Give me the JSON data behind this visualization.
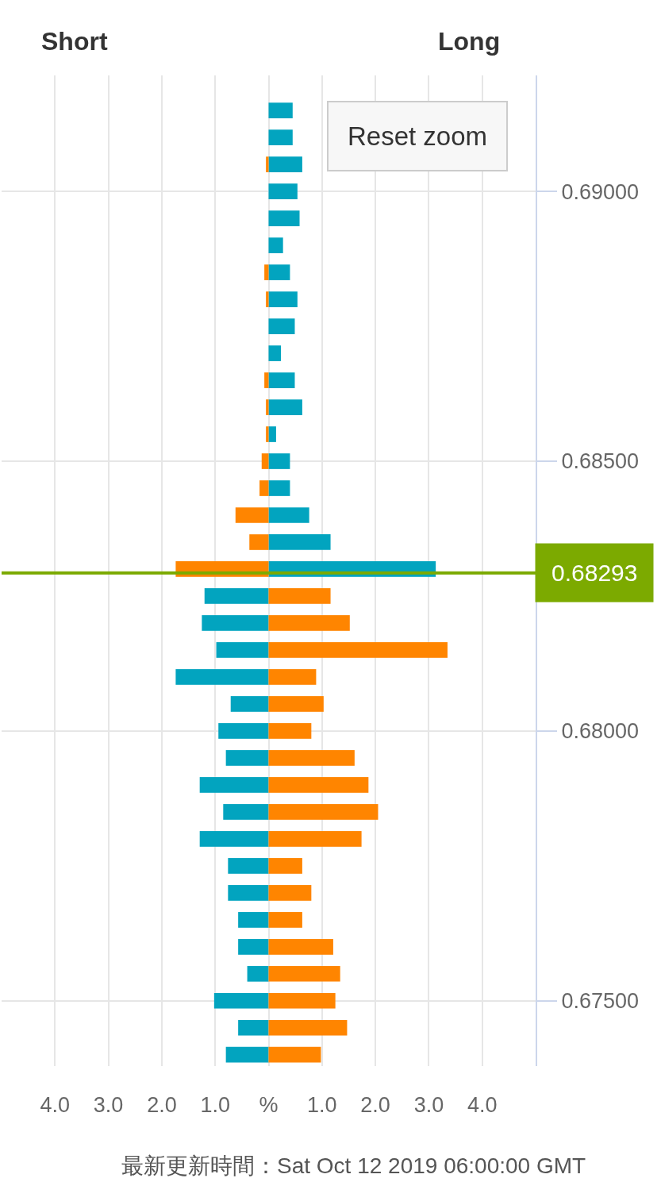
{
  "chart_data": {
    "type": "bar",
    "orientation": "horizontal",
    "stacked": true,
    "x": [
      0.6915,
      0.691,
      0.6905,
      0.69,
      0.6895,
      0.689,
      0.6885,
      0.688,
      0.6875,
      0.687,
      0.6865,
      0.686,
      0.6855,
      0.685,
      0.6845,
      0.684,
      0.6835,
      0.683,
      0.6825,
      0.682,
      0.6815,
      0.681,
      0.6805,
      0.68,
      0.6795,
      0.679,
      0.6785,
      0.678,
      0.6775,
      0.677,
      0.6765,
      0.676,
      0.6755,
      0.675,
      0.6745,
      0.674
    ],
    "series": [
      {
        "color": "#02a4bf",
        "values": [
          0.45,
          0.45,
          0.63,
          0.54,
          0.58,
          0.27,
          0.4,
          0.54,
          0.49,
          0.23,
          0.49,
          0.63,
          0.14,
          0.4,
          0.4,
          0.76,
          1.16,
          3.13,
          -1.2,
          -1.25,
          -0.98,
          -1.74,
          -0.71,
          -0.94,
          -0.8,
          -1.29,
          -0.85,
          -1.29,
          -0.76,
          -0.76,
          -0.57,
          -0.57,
          -0.4,
          -1.02,
          -0.57,
          -0.8
        ]
      },
      {
        "color": "#ff8500",
        "values": [
          null,
          null,
          -0.05,
          null,
          null,
          null,
          -0.08,
          -0.05,
          null,
          null,
          -0.08,
          -0.05,
          -0.05,
          -0.13,
          -0.17,
          -0.62,
          -0.36,
          -1.74,
          1.16,
          1.52,
          3.35,
          0.89,
          1.03,
          0.8,
          1.61,
          1.87,
          2.05,
          1.74,
          0.63,
          0.8,
          0.63,
          1.21,
          1.34,
          1.25,
          1.47,
          0.98
        ]
      }
    ],
    "xlim": [
      -5,
      5
    ],
    "xticks": [
      {
        "value": -5,
        "label": null
      },
      {
        "value": -4,
        "label": "4.0"
      },
      {
        "value": -3,
        "label": "3.0"
      },
      {
        "value": -2,
        "label": "2.0"
      },
      {
        "value": -1,
        "label": "1.0"
      },
      {
        "value": 0,
        "label": "%"
      },
      {
        "value": 1,
        "label": "1.0"
      },
      {
        "value": 2,
        "label": "2.0"
      },
      {
        "value": 3,
        "label": "3.0"
      },
      {
        "value": 4,
        "label": "4.0"
      },
      {
        "value": 5,
        "label": null
      }
    ],
    "ylim": [
      0.67379,
      0.69215
    ],
    "yticks": [
      {
        "value": 0.675,
        "label": "0.67500"
      },
      {
        "value": 0.68,
        "label": "0.68000"
      },
      {
        "value": 0.685,
        "label": "0.68500"
      },
      {
        "value": 0.69,
        "label": "0.69000"
      }
    ],
    "grid": true,
    "ref_lines": [
      {
        "axis": "y",
        "value": 0.68293,
        "label": "0.68293",
        "color": "#7caa00"
      }
    ],
    "annotations": [
      "Short",
      "Long",
      "Reset zoom",
      "最新更新時間：Sat Oct 12 2019 06:00:00 GMT"
    ]
  }
}
